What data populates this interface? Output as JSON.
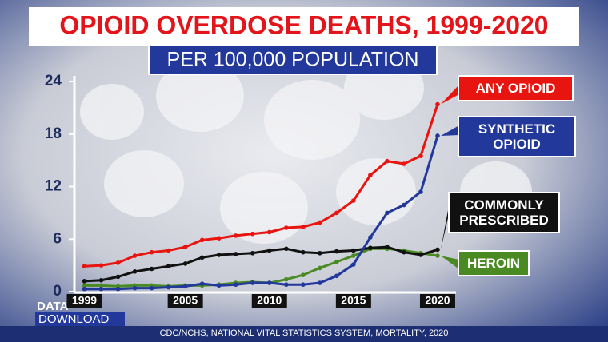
{
  "chart_data": {
    "type": "line",
    "title": "OPIOID OVERDOSE DEATHS, 1999-2020",
    "subtitle": "PER 100,000 POPULATION",
    "source": "CDC/NCHS, NATIONAL VITAL STATISTICS SYSTEM, MORTALITY, 2020",
    "x": [
      1999,
      2000,
      2001,
      2002,
      2003,
      2004,
      2005,
      2006,
      2007,
      2008,
      2009,
      2010,
      2011,
      2012,
      2013,
      2014,
      2015,
      2016,
      2017,
      2018,
      2019,
      2020
    ],
    "xlim": [
      1998.5,
      2021
    ],
    "xticks": [
      1999,
      2005,
      2010,
      2015,
      2020
    ],
    "ylim": [
      0,
      24
    ],
    "yticks": [
      0,
      6,
      12,
      18,
      24
    ],
    "series": [
      {
        "name": "ANY OPIOID",
        "color": "#e8140f",
        "values": [
          2.9,
          3.0,
          3.3,
          4.1,
          4.5,
          4.7,
          5.1,
          5.9,
          6.1,
          6.4,
          6.6,
          6.8,
          7.3,
          7.4,
          7.9,
          9.0,
          10.4,
          13.3,
          14.9,
          14.6,
          15.5,
          21.4
        ]
      },
      {
        "name": "SYNTHETIC OPIOID",
        "color": "#22389a",
        "values": [
          0.3,
          0.3,
          0.3,
          0.4,
          0.4,
          0.5,
          0.6,
          0.9,
          0.7,
          0.8,
          1.0,
          1.0,
          0.8,
          0.8,
          1.0,
          1.8,
          3.1,
          6.2,
          9.0,
          9.9,
          11.4,
          17.8
        ]
      },
      {
        "name": "COMMONLY PRESCRIBED",
        "color": "#111111",
        "values": [
          1.2,
          1.3,
          1.7,
          2.3,
          2.6,
          2.9,
          3.2,
          3.9,
          4.2,
          4.3,
          4.4,
          4.7,
          4.9,
          4.5,
          4.4,
          4.6,
          4.7,
          5.0,
          5.1,
          4.5,
          4.2,
          4.8
        ]
      },
      {
        "name": "HEROIN",
        "color": "#4a8a22",
        "values": [
          0.7,
          0.7,
          0.6,
          0.7,
          0.7,
          0.6,
          0.7,
          0.7,
          0.8,
          1.0,
          1.1,
          1.0,
          1.4,
          1.9,
          2.7,
          3.4,
          4.1,
          4.9,
          4.9,
          4.7,
          4.4,
          4.1
        ]
      }
    ]
  },
  "logo": {
    "top": "DATA",
    "bottom": "DOWNLOAD"
  }
}
